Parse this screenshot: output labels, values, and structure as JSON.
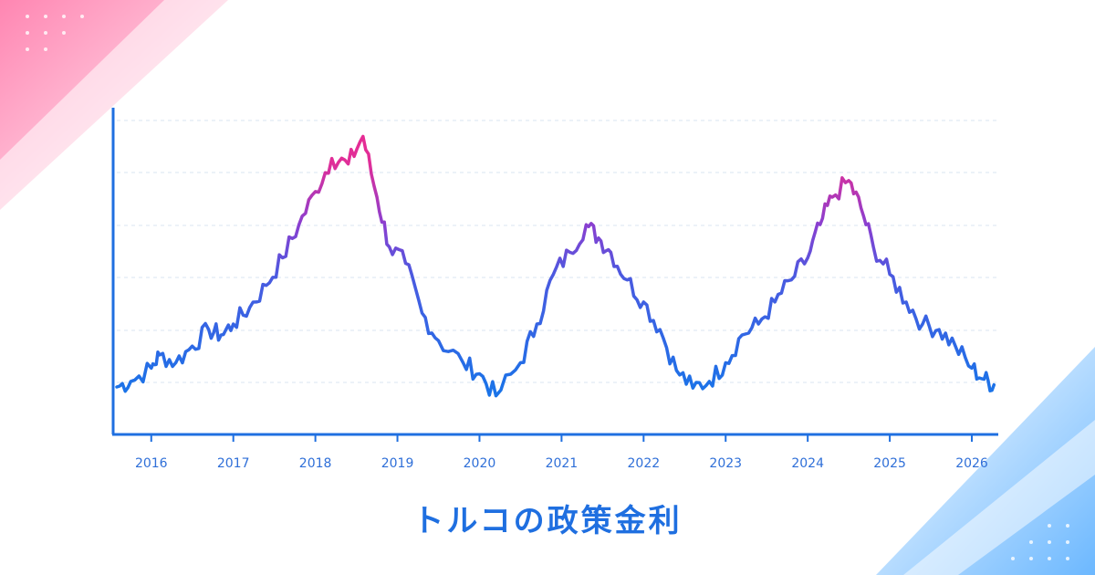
{
  "colors": {
    "axis": "#1f6fe0",
    "grid": "#d9e4f2",
    "tick_text": "#2f6fd8",
    "title": "#1f6fe0",
    "line_low": "#1a73e8",
    "line_mid": "#7b3fd6",
    "line_high": "#f0288c",
    "corner_top_left": "#ff8fb8",
    "corner_bottom_right": "#7fc3ff"
  },
  "chart_data": {
    "type": "line",
    "title": "トルコの政策金利",
    "xlabel": "",
    "ylabel": "",
    "x_ticks": [
      "2016",
      "2017",
      "2018",
      "2019",
      "2020",
      "2021",
      "2022",
      "2023",
      "2024",
      "2025",
      "2026"
    ],
    "y_tick_labels_shown": false,
    "gridlines": "horizontal dashed",
    "line_style": "gradient by value (blue → purple → pink)",
    "series": [
      {
        "x": [
          2015.58,
          2015.75,
          2016.0,
          2016.1,
          2016.3,
          2016.5,
          2016.7,
          2016.85,
          2017.0,
          2017.2,
          2017.4,
          2017.6,
          2017.8,
          2018.0,
          2018.2,
          2018.4,
          2018.58,
          2018.75,
          2018.9,
          2019.1,
          2019.3,
          2019.5,
          2019.8,
          2020.0,
          2020.2,
          2020.5,
          2020.7,
          2020.9,
          2021.1,
          2021.3,
          2021.45,
          2021.6,
          2021.8,
          2022.0,
          2022.2,
          2022.4,
          2022.6,
          2022.8,
          2023.0,
          2023.2,
          2023.4,
          2023.6,
          2023.8,
          2024.0,
          2024.15,
          2024.3,
          2024.5,
          2024.65,
          2024.8,
          2025.0,
          2025.2,
          2025.4,
          2025.6,
          2025.8,
          2026.0,
          2026.15,
          2026.27
        ],
        "y": [
          0.3,
          0.8,
          2.0,
          3.2,
          2.5,
          4.0,
          5.5,
          5.0,
          6.0,
          7.5,
          9.5,
          12.0,
          15.0,
          18.0,
          21.0,
          20.5,
          23.0,
          17.5,
          13.0,
          11.5,
          7.0,
          4.5,
          2.5,
          1.5,
          -0.5,
          2.5,
          6.0,
          10.5,
          12.5,
          15.0,
          13.8,
          12.5,
          10.0,
          8.0,
          5.5,
          1.8,
          0.2,
          0.8,
          2.5,
          5.0,
          6.0,
          8.0,
          10.0,
          12.0,
          15.0,
          17.5,
          19.0,
          16.5,
          13.0,
          10.5,
          8.0,
          6.0,
          5.5,
          4.0,
          2.0,
          1.0,
          0.5
        ]
      }
    ],
    "xlim": [
      2015.58,
      2026.3
    ],
    "ylim": [
      -4,
      27.5
    ]
  }
}
